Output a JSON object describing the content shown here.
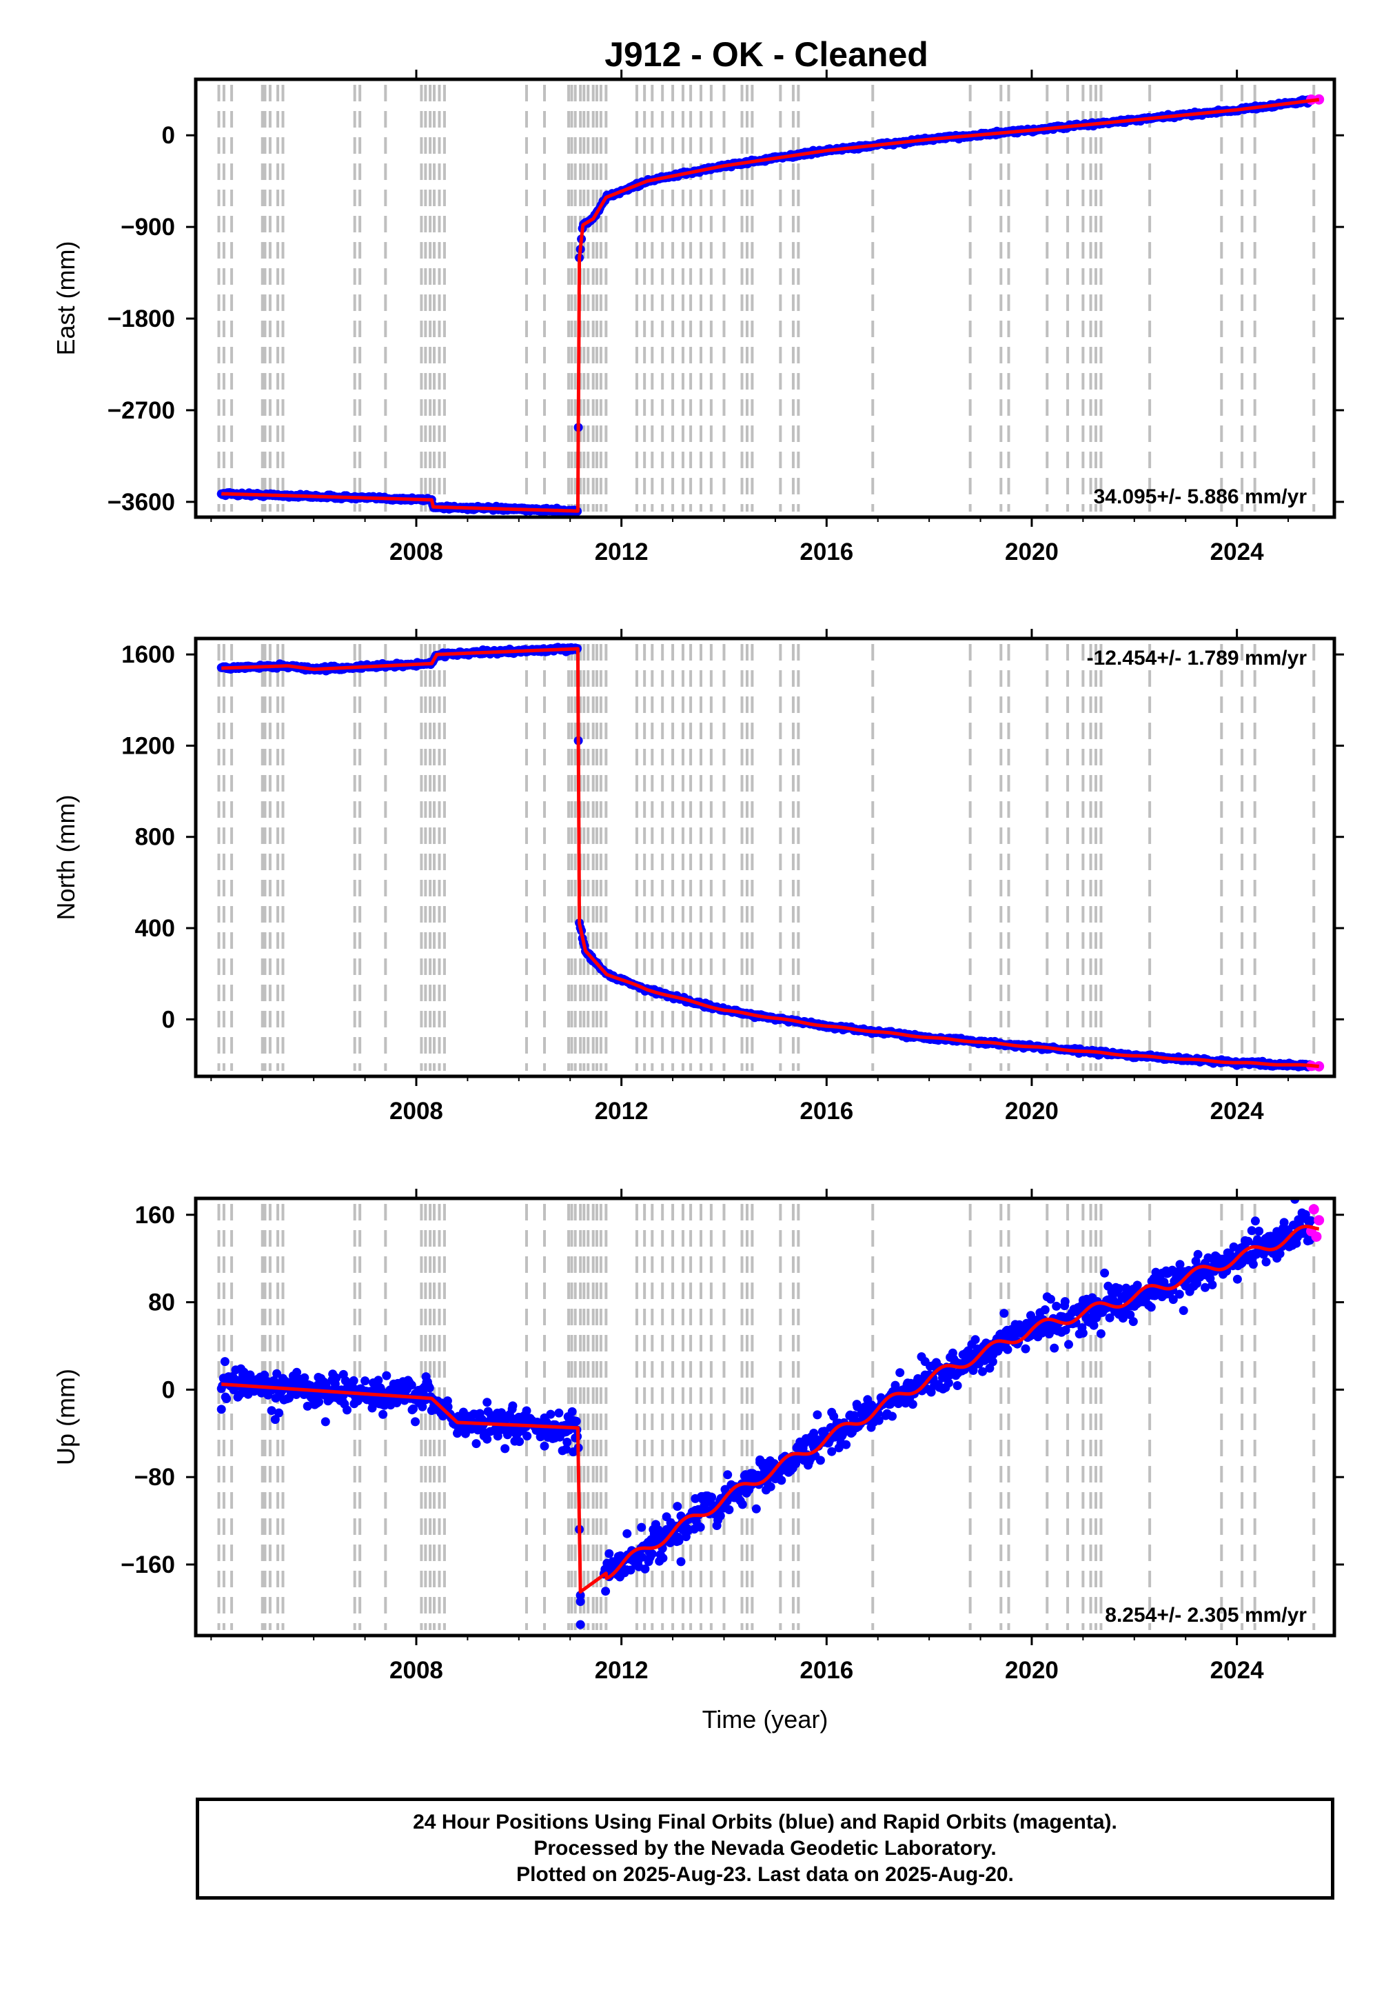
{
  "title": "J912  - OK - Cleaned",
  "footer": {
    "line1": "24 Hour Positions Using Final Orbits (blue) and Rapid Orbits (magenta).",
    "line2": "Processed by the Nevada Geodetic Laboratory.",
    "line3": "Plotted on 2025-Aug-23. Last data on 2025-Aug-20."
  },
  "colors": {
    "final_orbits": "#0000ff",
    "rapid_orbits": "#ff00ff",
    "model_fit": "#ff0000",
    "event_lines": "#bfbfbf"
  },
  "chart_data": [
    {
      "type": "scatter",
      "name": "east",
      "ylabel": "East (mm)",
      "xlabel": "",
      "xlim": [
        2003.7,
        2025.9
      ],
      "ylim": [
        -3750,
        550
      ],
      "xticks": [
        2008,
        2012,
        2016,
        2020,
        2024
      ],
      "yticks": [
        0,
        -900,
        -1800,
        -2700,
        -3600
      ],
      "ytick_labels": [
        "0",
        "−900",
        "−1800",
        "−2700",
        "−3600"
      ],
      "rate": "34.095+/- 5.886 mm/yr",
      "rate_position": "bottom-right",
      "noise": 12,
      "fit": [
        [
          2004.2,
          -3520
        ],
        [
          2008.3,
          -3580
        ],
        [
          2008.33,
          -3650
        ],
        [
          2011.15,
          -3690
        ],
        [
          2011.18,
          -1200
        ],
        [
          2011.25,
          -880
        ],
        [
          2011.45,
          -820
        ],
        [
          2011.7,
          -610
        ],
        [
          2012.5,
          -450
        ],
        [
          2014,
          -300
        ],
        [
          2016,
          -150
        ],
        [
          2018,
          -40
        ],
        [
          2020,
          50
        ],
        [
          2022,
          150
        ],
        [
          2024,
          250
        ],
        [
          2025.6,
          350
        ]
      ],
      "rapid": [
        [
          2025.45,
          350
        ],
        [
          2025.6,
          352
        ]
      ]
    },
    {
      "type": "scatter",
      "name": "north",
      "ylabel": "North (mm)",
      "xlabel": "",
      "xlim": [
        2003.7,
        2025.9
      ],
      "ylim": [
        -250,
        1670
      ],
      "xticks": [
        2008,
        2012,
        2016,
        2020,
        2024
      ],
      "yticks": [
        1600,
        1200,
        800,
        400,
        0
      ],
      "ytick_labels": [
        "1600",
        "1200",
        "800",
        "400",
        "0"
      ],
      "rate": "-12.454+/- 1.789 mm/yr",
      "rate_position": "top-right",
      "noise": 6,
      "fit": [
        [
          2004.2,
          1540
        ],
        [
          2005.5,
          1550
        ],
        [
          2006,
          1535
        ],
        [
          2008.3,
          1560
        ],
        [
          2008.4,
          1600
        ],
        [
          2011.15,
          1625
        ],
        [
          2011.18,
          420
        ],
        [
          2011.3,
          300
        ],
        [
          2011.7,
          200
        ],
        [
          2012.5,
          130
        ],
        [
          2014,
          40
        ],
        [
          2016,
          -30
        ],
        [
          2018,
          -80
        ],
        [
          2020,
          -120
        ],
        [
          2022,
          -160
        ],
        [
          2024,
          -190
        ],
        [
          2025.6,
          -205
        ]
      ],
      "rapid": [
        [
          2025.45,
          -204
        ],
        [
          2025.6,
          -206
        ]
      ]
    },
    {
      "type": "scatter",
      "name": "up",
      "ylabel": "Up (mm)",
      "xlabel": "Time (year)",
      "xlim": [
        2003.7,
        2025.9
      ],
      "ylim": [
        -225,
        175
      ],
      "xticks": [
        2008,
        2012,
        2016,
        2020,
        2024
      ],
      "yticks": [
        160,
        80,
        0,
        -80,
        -160
      ],
      "ytick_labels": [
        "160",
        "80",
        "0",
        "−80",
        "−160"
      ],
      "rate": "8.254+/- 2.305 mm/yr",
      "rate_position": "bottom-right",
      "noise": 9,
      "fit": [
        [
          2004.2,
          5
        ],
        [
          2008.3,
          -8
        ],
        [
          2008.8,
          -30
        ],
        [
          2011.15,
          -35
        ],
        [
          2011.2,
          -185
        ],
        [
          2011.7,
          -168
        ],
        [
          2012,
          -160
        ],
        [
          2014,
          -100
        ],
        [
          2016,
          -45
        ],
        [
          2018,
          10
        ],
        [
          2020,
          55
        ],
        [
          2022,
          85
        ],
        [
          2024,
          120
        ],
        [
          2025.6,
          150
        ]
      ],
      "outliers": [
        [
          2011.2,
          -215
        ]
      ],
      "rapid": [
        [
          2025.45,
          145
        ],
        [
          2025.5,
          165
        ],
        [
          2025.55,
          140
        ],
        [
          2025.6,
          155
        ]
      ]
    }
  ],
  "event_years": [
    2004.15,
    2004.25,
    2004.4,
    2005.0,
    2005.05,
    2005.15,
    2005.3,
    2005.4,
    2006.8,
    2006.9,
    2007.4,
    2008.1,
    2008.18,
    2008.27,
    2008.35,
    2008.45,
    2008.55,
    2010.15,
    2010.5,
    2010.97,
    2011.03,
    2011.1,
    2011.2,
    2011.27,
    2011.35,
    2011.45,
    2011.52,
    2011.6,
    2011.7,
    2012.3,
    2012.45,
    2012.6,
    2012.8,
    2013.0,
    2013.2,
    2013.35,
    2013.55,
    2013.75,
    2014.0,
    2014.35,
    2014.45,
    2014.55,
    2015.1,
    2015.35,
    2015.45,
    2016.9,
    2018.8,
    2019.4,
    2019.55,
    2020.3,
    2020.7,
    2021.0,
    2021.15,
    2021.25,
    2021.35,
    2022.3,
    2023.7,
    2024.1,
    2024.35,
    2025.5
  ]
}
